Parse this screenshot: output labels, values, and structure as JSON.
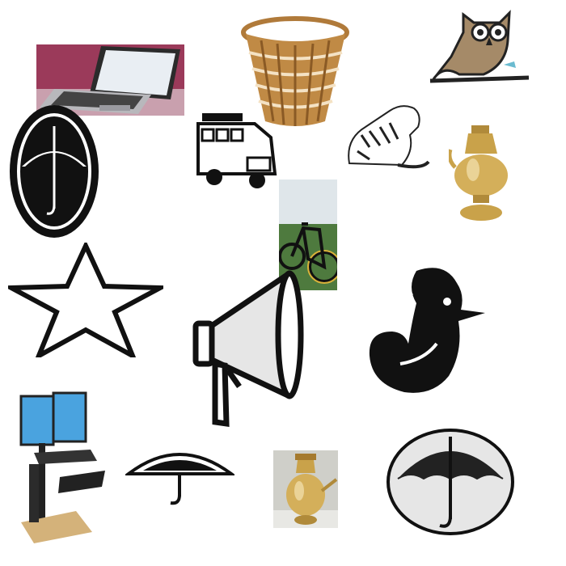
{
  "symbols": [
    {
      "id": "laptop",
      "icon": "laptop-icon"
    },
    {
      "id": "basket",
      "icon": "basket-icon"
    },
    {
      "id": "owl",
      "icon": "owl-icon"
    },
    {
      "id": "umbrella-oval-black",
      "icon": "umbrella-icon"
    },
    {
      "id": "bus",
      "icon": "bus-icon"
    },
    {
      "id": "tiger",
      "icon": "tiger-icon"
    },
    {
      "id": "brass-kettle",
      "icon": "kettle-icon"
    },
    {
      "id": "bicycle",
      "icon": "bicycle-icon"
    },
    {
      "id": "star",
      "icon": "star-icon"
    },
    {
      "id": "megaphone",
      "icon": "megaphone-icon"
    },
    {
      "id": "rooster",
      "icon": "rooster-icon"
    },
    {
      "id": "standing-desk",
      "icon": "standing-desk-icon"
    },
    {
      "id": "umbrella-half",
      "icon": "umbrella-icon"
    },
    {
      "id": "brass-pot",
      "icon": "water-pot-icon"
    },
    {
      "id": "umbrella-oval-grey",
      "icon": "umbrella-icon"
    }
  ],
  "colors": {
    "background": "#ffffff",
    "ink": "#111111",
    "brass": "#c9a24a",
    "wicker": "#c08a45",
    "laptop_bg": "#9b3a5a",
    "monitor": "#4aa3df"
  }
}
